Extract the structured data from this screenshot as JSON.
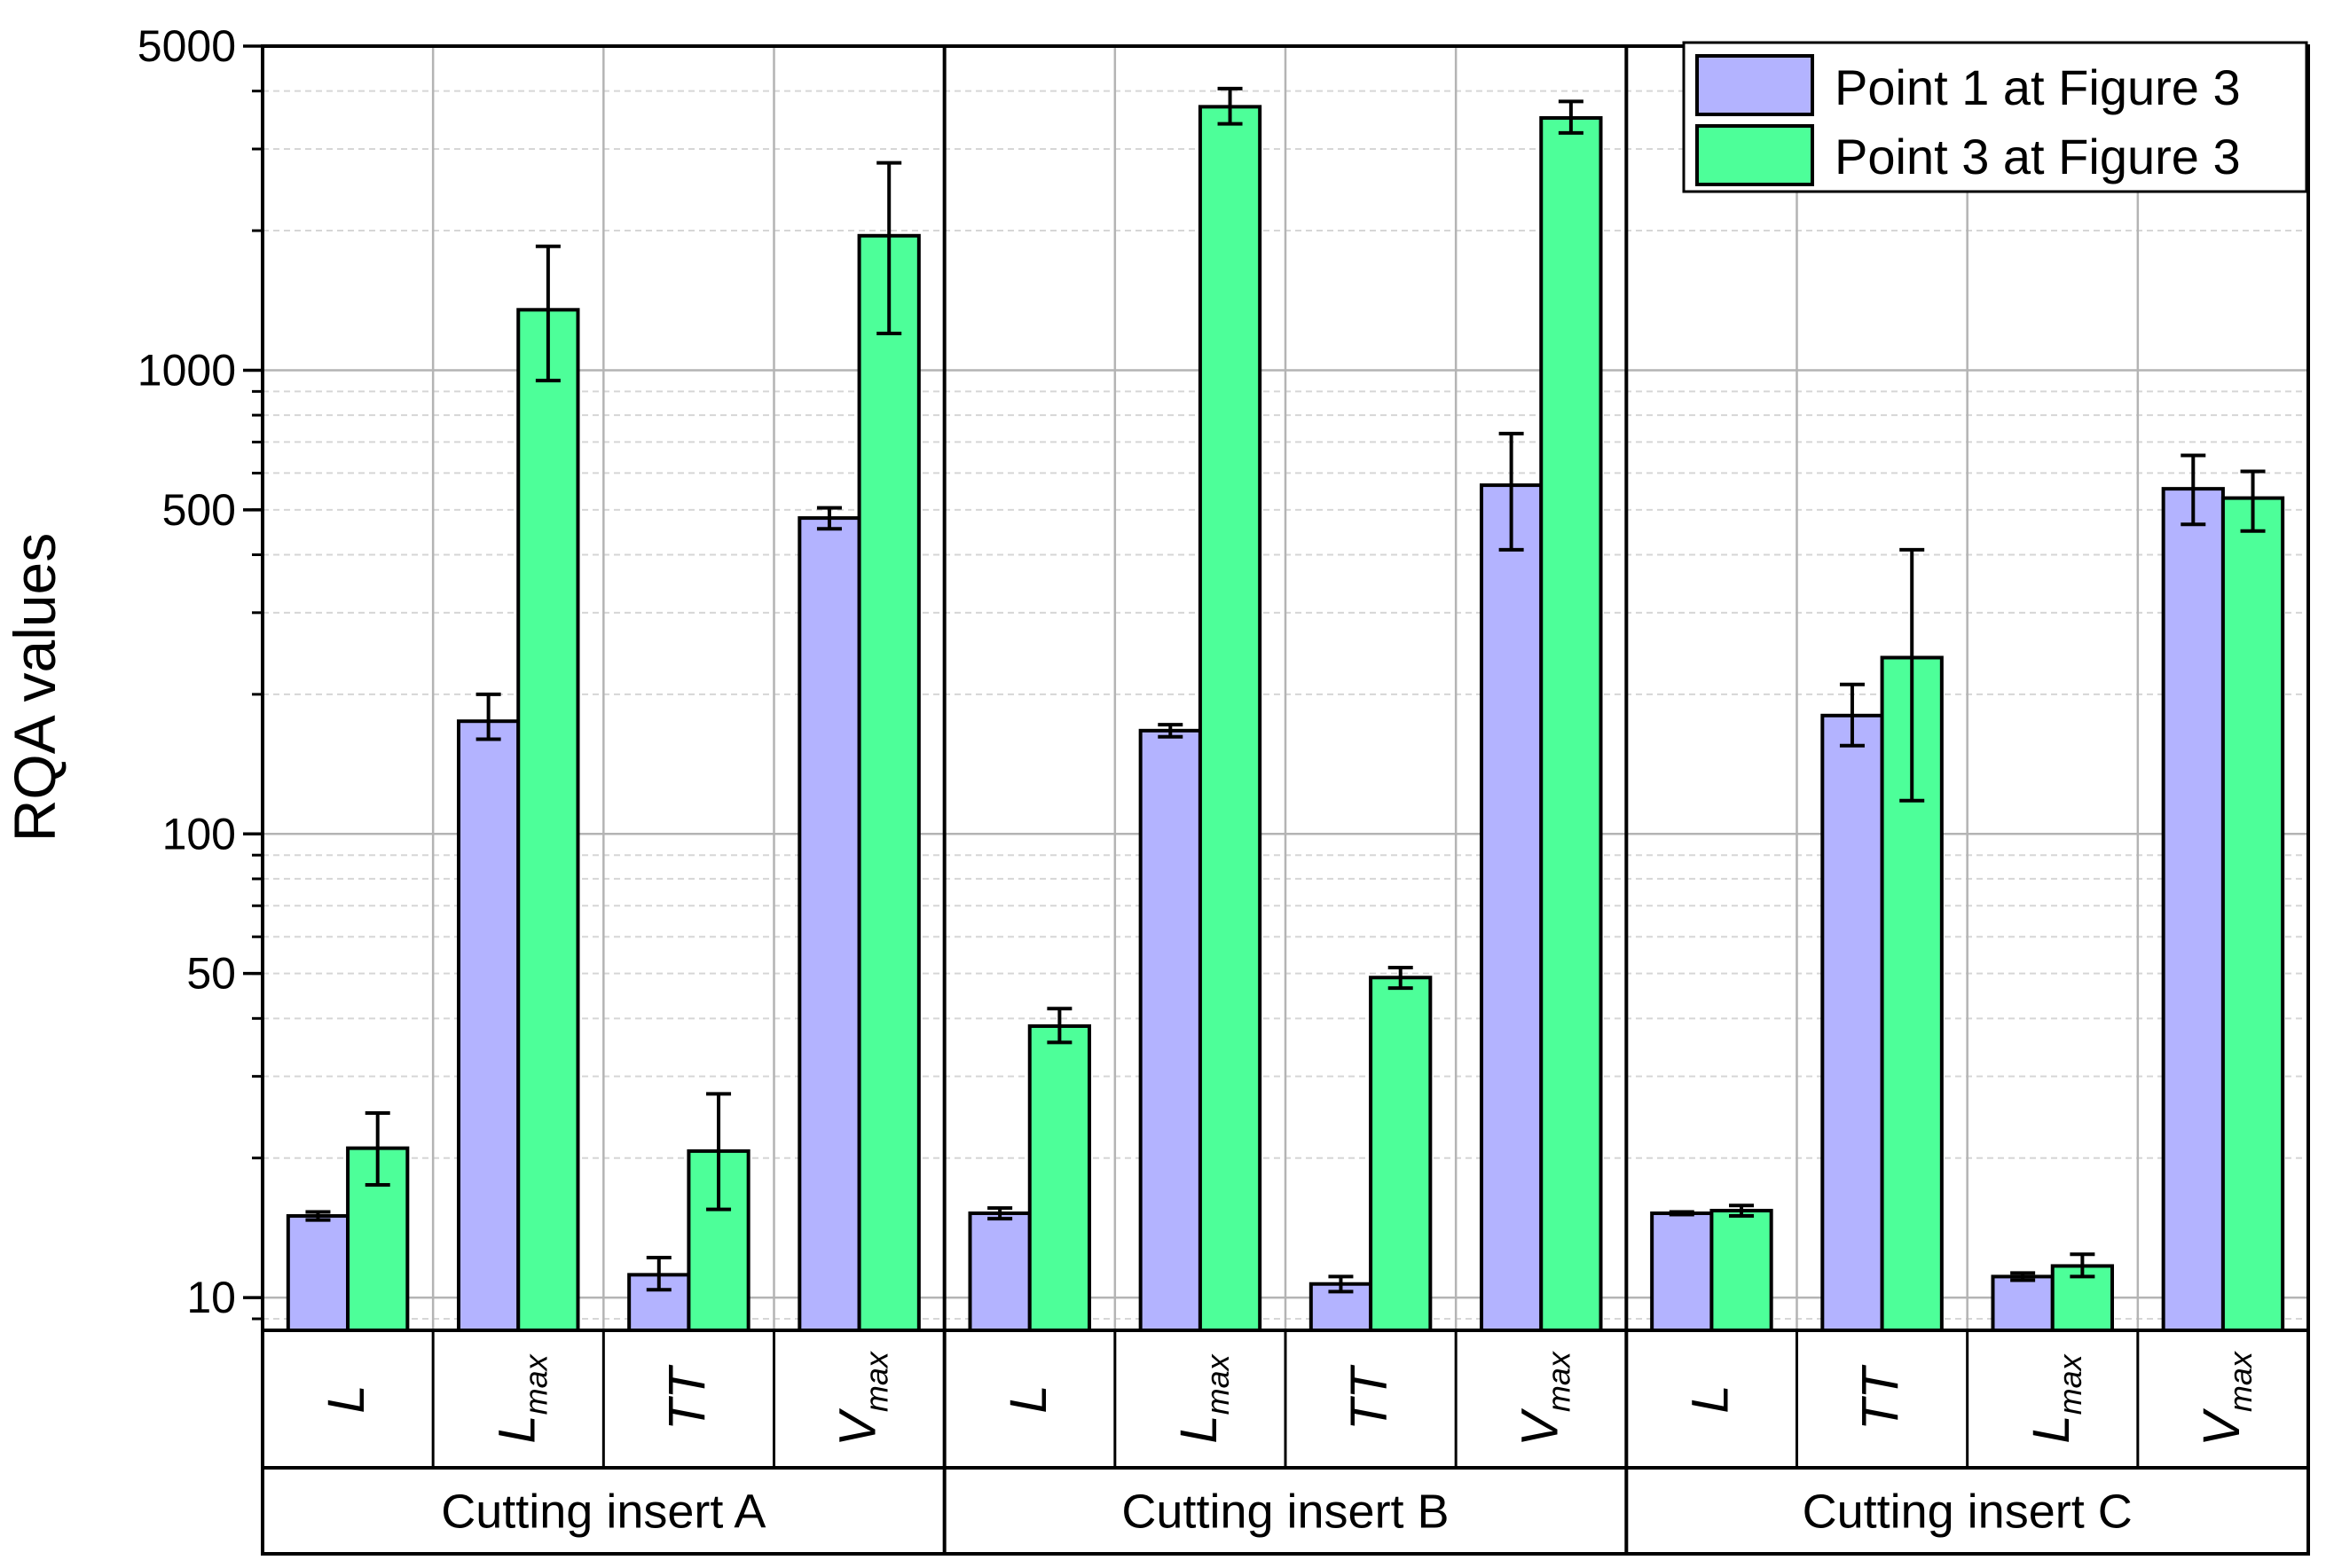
{
  "chart_data": {
    "type": "bar",
    "title": "",
    "xlabel": "",
    "ylabel": "RQA values",
    "yscale": "log",
    "ylim": [
      8.5,
      5000
    ],
    "yticks": [
      {
        "value": 10,
        "label": "10"
      },
      {
        "value": 50,
        "label": "50"
      },
      {
        "value": 100,
        "label": "100"
      },
      {
        "value": 500,
        "label": "500"
      },
      {
        "value": 1000,
        "label": "1000"
      },
      {
        "value": 5000,
        "label": "5000"
      }
    ],
    "grid": true,
    "legend_position": "top-right",
    "series": [
      {
        "name": "Point 1 at Figure 3",
        "color": "#B3B3FF"
      },
      {
        "name": "Point 3 at Figure 3",
        "color": "#4DFF99"
      }
    ],
    "groups": [
      {
        "label": "Cutting insert A",
        "categories": [
          {
            "base": "L",
            "sub": "",
            "values": [
              15,
              21
            ],
            "errors": [
              [
                14.7,
                15.3
              ],
              [
                17.5,
                25
              ]
            ]
          },
          {
            "base": "L",
            "sub": "max",
            "values": [
              175,
              1350
            ],
            "errors": [
              [
                160,
                200
              ],
              [
                950,
                1850
              ]
            ]
          },
          {
            "base": "TT",
            "sub": "",
            "values": [
              11.2,
              20.7
            ],
            "errors": [
              [
                10.4,
                12.2
              ],
              [
                15.5,
                27.5
              ]
            ]
          },
          {
            "base": "V",
            "sub": "max",
            "values": [
              480,
              1950
            ],
            "errors": [
              [
                455,
                505
              ],
              [
                1200,
                2800
              ]
            ]
          }
        ]
      },
      {
        "label": "Cutting insert B",
        "categories": [
          {
            "base": "L",
            "sub": "",
            "values": [
              15.2,
              38.5
            ],
            "errors": [
              [
                14.8,
                15.6
              ],
              [
                35.5,
                42
              ]
            ]
          },
          {
            "base": "L",
            "sub": "max",
            "values": [
              167,
              3700
            ],
            "errors": [
              [
                162,
                172
              ],
              [
                3400,
                4050
              ]
            ]
          },
          {
            "base": "TT",
            "sub": "",
            "values": [
              10.7,
              49
            ],
            "errors": [
              [
                10.3,
                11.1
              ],
              [
                46.5,
                51.5
              ]
            ]
          },
          {
            "base": "V",
            "sub": "max",
            "values": [
              565,
              3500
            ],
            "errors": [
              [
                410,
                730
              ],
              [
                3250,
                3800
              ]
            ]
          }
        ]
      },
      {
        "label": "Cutting insert C",
        "categories": [
          {
            "base": "L",
            "sub": "",
            "values": [
              15.2,
              15.4
            ],
            "errors": [
              [
                15.1,
                15.3
              ],
              [
                15.0,
                15.8
              ]
            ]
          },
          {
            "base": "TT",
            "sub": "",
            "values": [
              180,
              240
            ],
            "errors": [
              [
                155,
                210
              ],
              [
                118,
                410
              ]
            ]
          },
          {
            "base": "L",
            "sub": "max",
            "values": [
              11.1,
              11.7
            ],
            "errors": [
              [
                10.9,
                11.3
              ],
              [
                11.1,
                12.4
              ]
            ]
          },
          {
            "base": "V",
            "sub": "max",
            "values": [
              555,
              530
            ],
            "errors": [
              [
                465,
                655
              ],
              [
                450,
                605
              ]
            ]
          }
        ]
      }
    ]
  }
}
